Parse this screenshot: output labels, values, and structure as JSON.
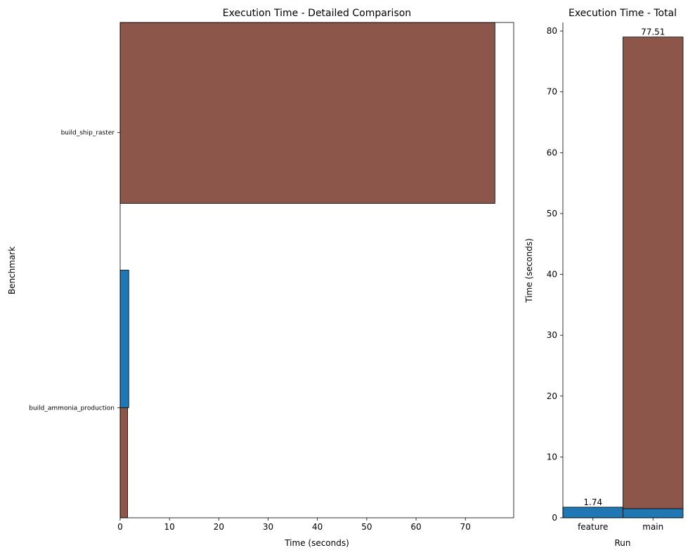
{
  "colors": {
    "feature": "#1f77b4",
    "main": "#8c564b",
    "edge": "#000000"
  },
  "chart_data": [
    {
      "type": "bar",
      "orientation": "horizontal",
      "title": "Execution Time - Detailed Comparison",
      "xlabel": "Time (seconds)",
      "ylabel": "Benchmark",
      "categories": [
        "build_ammonia_production",
        "build_ship_raster"
      ],
      "series": [
        {
          "color": "#1f77b4",
          "values": [
            1.74,
            0
          ]
        },
        {
          "color": "#8c564b",
          "values": [
            1.5,
            76.0
          ]
        }
      ],
      "xlim": [
        0,
        79.8
      ],
      "xticks": [
        0,
        10,
        20,
        30,
        40,
        50,
        60,
        70
      ],
      "grid": false
    },
    {
      "type": "bar",
      "title": "Execution Time - Total",
      "xlabel": "Run",
      "ylabel": "Time (seconds)",
      "categories": [
        "feature",
        "main"
      ],
      "series": [
        {
          "color": "#1f77b4",
          "values": [
            1.74,
            1.5
          ]
        },
        {
          "color": "#8c564b",
          "values": [
            0,
            77.51
          ]
        }
      ],
      "data_labels": [
        "1.74",
        "77.51"
      ],
      "ylim": [
        0,
        81.4
      ],
      "yticks": [
        0,
        10,
        20,
        30,
        40,
        50,
        60,
        70,
        80
      ],
      "grid": false
    }
  ]
}
